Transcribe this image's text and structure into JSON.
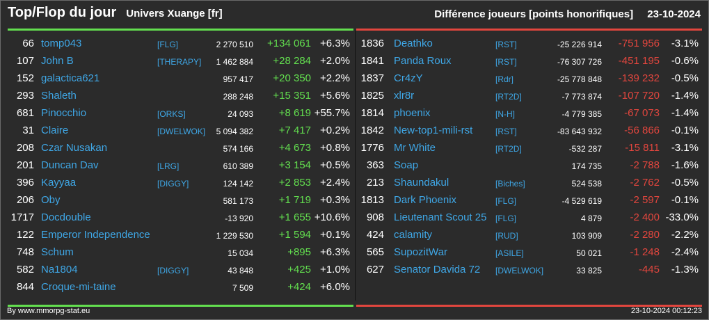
{
  "header": {
    "title": "Top/Flop du jour",
    "universe": "Univers Xuange [fr]",
    "metric": "Différence joueurs [points honorifiques]",
    "date": "23-10-2024"
  },
  "colors": {
    "gain": "#63df4f",
    "loss": "#e2463e",
    "name": "#3fa7e6",
    "background": "#2b2b2b"
  },
  "top": [
    {
      "rank": "66",
      "name": "tomp043",
      "alliance": "[FLG]",
      "points": "2 270 510",
      "diff": "+134 061",
      "pct": "+6.3%"
    },
    {
      "rank": "107",
      "name": "John B",
      "alliance": "[THERAPY]",
      "points": "1 462 884",
      "diff": "+28 284",
      "pct": "+2.0%"
    },
    {
      "rank": "152",
      "name": "galactica621",
      "alliance": "",
      "points": "957 417",
      "diff": "+20 350",
      "pct": "+2.2%"
    },
    {
      "rank": "293",
      "name": "Shaleth",
      "alliance": "",
      "points": "288 248",
      "diff": "+15 351",
      "pct": "+5.6%"
    },
    {
      "rank": "681",
      "name": "Pinocchio",
      "alliance": "[ORKS]",
      "points": "24 093",
      "diff": "+8 619",
      "pct": "+55.7%"
    },
    {
      "rank": "31",
      "name": "Claire",
      "alliance": "[DWELWOK]",
      "points": "5 094 382",
      "diff": "+7 417",
      "pct": "+0.2%"
    },
    {
      "rank": "208",
      "name": "Czar Nusakan",
      "alliance": "",
      "points": "574 166",
      "diff": "+4 673",
      "pct": "+0.8%"
    },
    {
      "rank": "201",
      "name": "Duncan Dav",
      "alliance": "[LRG]",
      "points": "610 389",
      "diff": "+3 154",
      "pct": "+0.5%"
    },
    {
      "rank": "396",
      "name": "Kayyaa",
      "alliance": "[DIGGY]",
      "points": "124 142",
      "diff": "+2 853",
      "pct": "+2.4%"
    },
    {
      "rank": "206",
      "name": "Oby",
      "alliance": "",
      "points": "581 173",
      "diff": "+1 719",
      "pct": "+0.3%"
    },
    {
      "rank": "1717",
      "name": "Docdouble",
      "alliance": "",
      "points": "-13 920",
      "diff": "+1 655",
      "pct": "+10.6%"
    },
    {
      "rank": "122",
      "name": "Emperor Independence",
      "alliance": "",
      "points": "1 229 530",
      "diff": "+1 594",
      "pct": "+0.1%"
    },
    {
      "rank": "748",
      "name": "Schum",
      "alliance": "",
      "points": "15 034",
      "diff": "+895",
      "pct": "+6.3%"
    },
    {
      "rank": "582",
      "name": "Na1804",
      "alliance": "[DIGGY]",
      "points": "43 848",
      "diff": "+425",
      "pct": "+1.0%"
    },
    {
      "rank": "844",
      "name": "Croque-mi-taine",
      "alliance": "",
      "points": "7 509",
      "diff": "+424",
      "pct": "+6.0%"
    }
  ],
  "flop": [
    {
      "rank": "1836",
      "name": "Deathko",
      "alliance": "[RST]",
      "points": "-25 226 914",
      "diff": "-751 956",
      "pct": "-3.1%"
    },
    {
      "rank": "1841",
      "name": "Panda Roux",
      "alliance": "[RST]",
      "points": "-76 307 726",
      "diff": "-451 195",
      "pct": "-0.6%"
    },
    {
      "rank": "1837",
      "name": "Cr4zY",
      "alliance": "[Rdr]",
      "points": "-25 778 848",
      "diff": "-139 232",
      "pct": "-0.5%"
    },
    {
      "rank": "1825",
      "name": "xlr8r",
      "alliance": "[RT2D]",
      "points": "-7 773 874",
      "diff": "-107 720",
      "pct": "-1.4%"
    },
    {
      "rank": "1814",
      "name": "phoenix",
      "alliance": "[N-H]",
      "points": "-4 779 385",
      "diff": "-67 073",
      "pct": "-1.4%"
    },
    {
      "rank": "1842",
      "name": "New-top1-mili-rst",
      "alliance": "[RST]",
      "points": "-83 643 932",
      "diff": "-56 866",
      "pct": "-0.1%"
    },
    {
      "rank": "1776",
      "name": "Mr White",
      "alliance": "[RT2D]",
      "points": "-532 287",
      "diff": "-15 811",
      "pct": "-3.1%"
    },
    {
      "rank": "363",
      "name": "Soap",
      "alliance": "",
      "points": "174 735",
      "diff": "-2 788",
      "pct": "-1.6%"
    },
    {
      "rank": "213",
      "name": "Shaundakul",
      "alliance": "[Biches]",
      "points": "524 538",
      "diff": "-2 762",
      "pct": "-0.5%"
    },
    {
      "rank": "1813",
      "name": "Dark Phoenix",
      "alliance": "[FLG]",
      "points": "-4 529 619",
      "diff": "-2 597",
      "pct": "-0.1%"
    },
    {
      "rank": "908",
      "name": "Lieutenant Scout 25",
      "alliance": "[FLG]",
      "points": "4 879",
      "diff": "-2 400",
      "pct": "-33.0%"
    },
    {
      "rank": "424",
      "name": "calamity",
      "alliance": "[RUD]",
      "points": "103 909",
      "diff": "-2 280",
      "pct": "-2.2%"
    },
    {
      "rank": "565",
      "name": "SupozitWar",
      "alliance": "[ASILE]",
      "points": "50 021",
      "diff": "-1 248",
      "pct": "-2.4%"
    },
    {
      "rank": "627",
      "name": "Senator Davida 72",
      "alliance": "[DWELWOK]",
      "points": "33 825",
      "diff": "-445",
      "pct": "-1.3%"
    }
  ],
  "footer": {
    "credit": "By www.mmorpg-stat.eu",
    "timestamp": "23-10-2024 00:12:23"
  }
}
